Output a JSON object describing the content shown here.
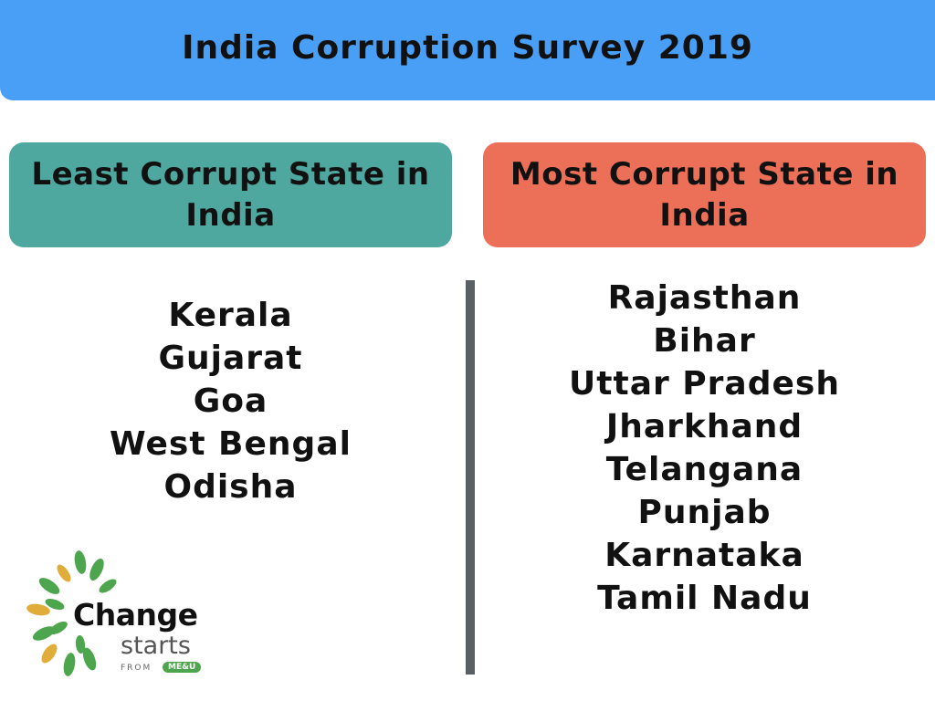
{
  "header": {
    "title": "India Corruption Survey 2019"
  },
  "left_box": {
    "label": "Least Corrupt State in India"
  },
  "right_box": {
    "label": "Most Corrupt State in India"
  },
  "least_corrupt": [
    "Kerala",
    "Gujarat",
    "Goa",
    "West Bengal",
    "Odisha"
  ],
  "most_corrupt": [
    "Rajasthan",
    "Bihar",
    "Uttar Pradesh",
    "Jharkhand",
    "Telangana",
    "Punjab",
    "Karnataka",
    "Tamil Nadu"
  ],
  "logo": {
    "word1": "Change",
    "word2": "starts",
    "word3": "FROM",
    "word4": "ME&U",
    "colors": {
      "green": "#4da64d",
      "gold": "#e0ac3a"
    }
  },
  "colors": {
    "header": "#499ff5",
    "least_box": "#4ea89f",
    "most_box": "#ec6f58",
    "divider": "#5b5f66"
  }
}
